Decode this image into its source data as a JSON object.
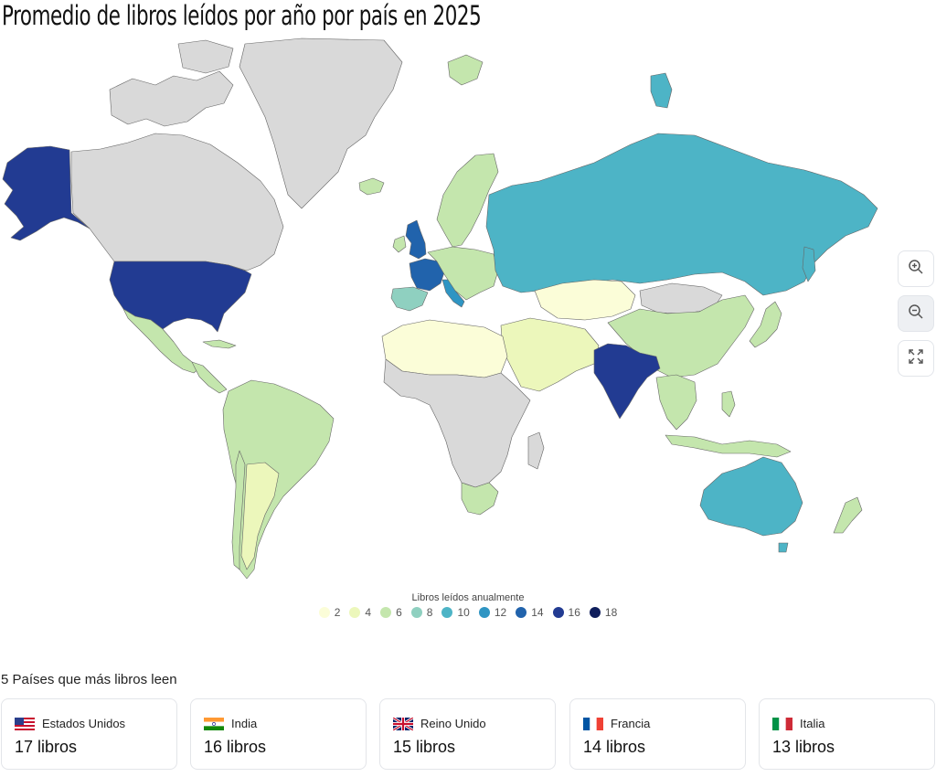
{
  "title": "Promedio de libros leídos por año por país en 2025",
  "legend": {
    "title": "Libros leídos anualmente",
    "items": [
      {
        "label": "2",
        "color": "#fbfdd8"
      },
      {
        "label": "4",
        "color": "#ecf7bb"
      },
      {
        "label": "6",
        "color": "#c4e6ad"
      },
      {
        "label": "8",
        "color": "#8fd0c0"
      },
      {
        "label": "10",
        "color": "#4db4c6"
      },
      {
        "label": "12",
        "color": "#2f95c3"
      },
      {
        "label": "14",
        "color": "#2163ac"
      },
      {
        "label": "16",
        "color": "#223b92"
      },
      {
        "label": "18",
        "color": "#0f1e5c"
      }
    ]
  },
  "map": {
    "no_data_color": "#d9d9d9",
    "regions": [
      {
        "name": "Alaska (Estados Unidos)",
        "value": 17
      },
      {
        "name": "Canadá",
        "value": null
      },
      {
        "name": "Groenlandia",
        "value": null
      },
      {
        "name": "Estados Unidos",
        "value": 17
      },
      {
        "name": "México",
        "value": 6
      },
      {
        "name": "Centroamérica",
        "value": 6
      },
      {
        "name": "Sudamérica",
        "value": 6
      },
      {
        "name": "Argentina",
        "value": 5
      },
      {
        "name": "Chile",
        "value": 6
      },
      {
        "name": "Islandia",
        "value": 6
      },
      {
        "name": "Reino Unido",
        "value": 15
      },
      {
        "name": "Francia",
        "value": 14
      },
      {
        "name": "España",
        "value": 9
      },
      {
        "name": "Italia",
        "value": 13
      },
      {
        "name": "Escandinavia",
        "value": 6
      },
      {
        "name": "Europa central",
        "value": 6
      },
      {
        "name": "Rusia",
        "value": 11
      },
      {
        "name": "Kazajistán",
        "value": 3
      },
      {
        "name": "Mongolia",
        "value": null
      },
      {
        "name": "China",
        "value": 7
      },
      {
        "name": "India",
        "value": 16
      },
      {
        "name": "Oriente Medio",
        "value": 4
      },
      {
        "name": "Norte de África",
        "value": 3
      },
      {
        "name": "África",
        "value": null
      },
      {
        "name": "Sudáfrica",
        "value": 7
      },
      {
        "name": "Sudeste asiático",
        "value": 6
      },
      {
        "name": "Japón",
        "value": 6
      },
      {
        "name": "Australia",
        "value": 11
      },
      {
        "name": "Nueva Zelanda",
        "value": 6
      }
    ]
  },
  "controls": {
    "zoom_in_icon": "zoom-in-icon",
    "zoom_out_icon": "zoom-out-icon",
    "fullscreen_icon": "expand-icon"
  },
  "top": {
    "title": "5 Países que más libros leen",
    "cards": [
      {
        "country": "Estados Unidos",
        "value": "17 libros",
        "flag": "flag-us-icon"
      },
      {
        "country": "India",
        "value": "16 libros",
        "flag": "flag-in-icon"
      },
      {
        "country": "Reino Unido",
        "value": "15 libros",
        "flag": "flag-gb-icon"
      },
      {
        "country": "Francia",
        "value": "14 libros",
        "flag": "flag-fr-icon"
      },
      {
        "country": "Italia",
        "value": "13 libros",
        "flag": "flag-it-icon"
      }
    ]
  }
}
